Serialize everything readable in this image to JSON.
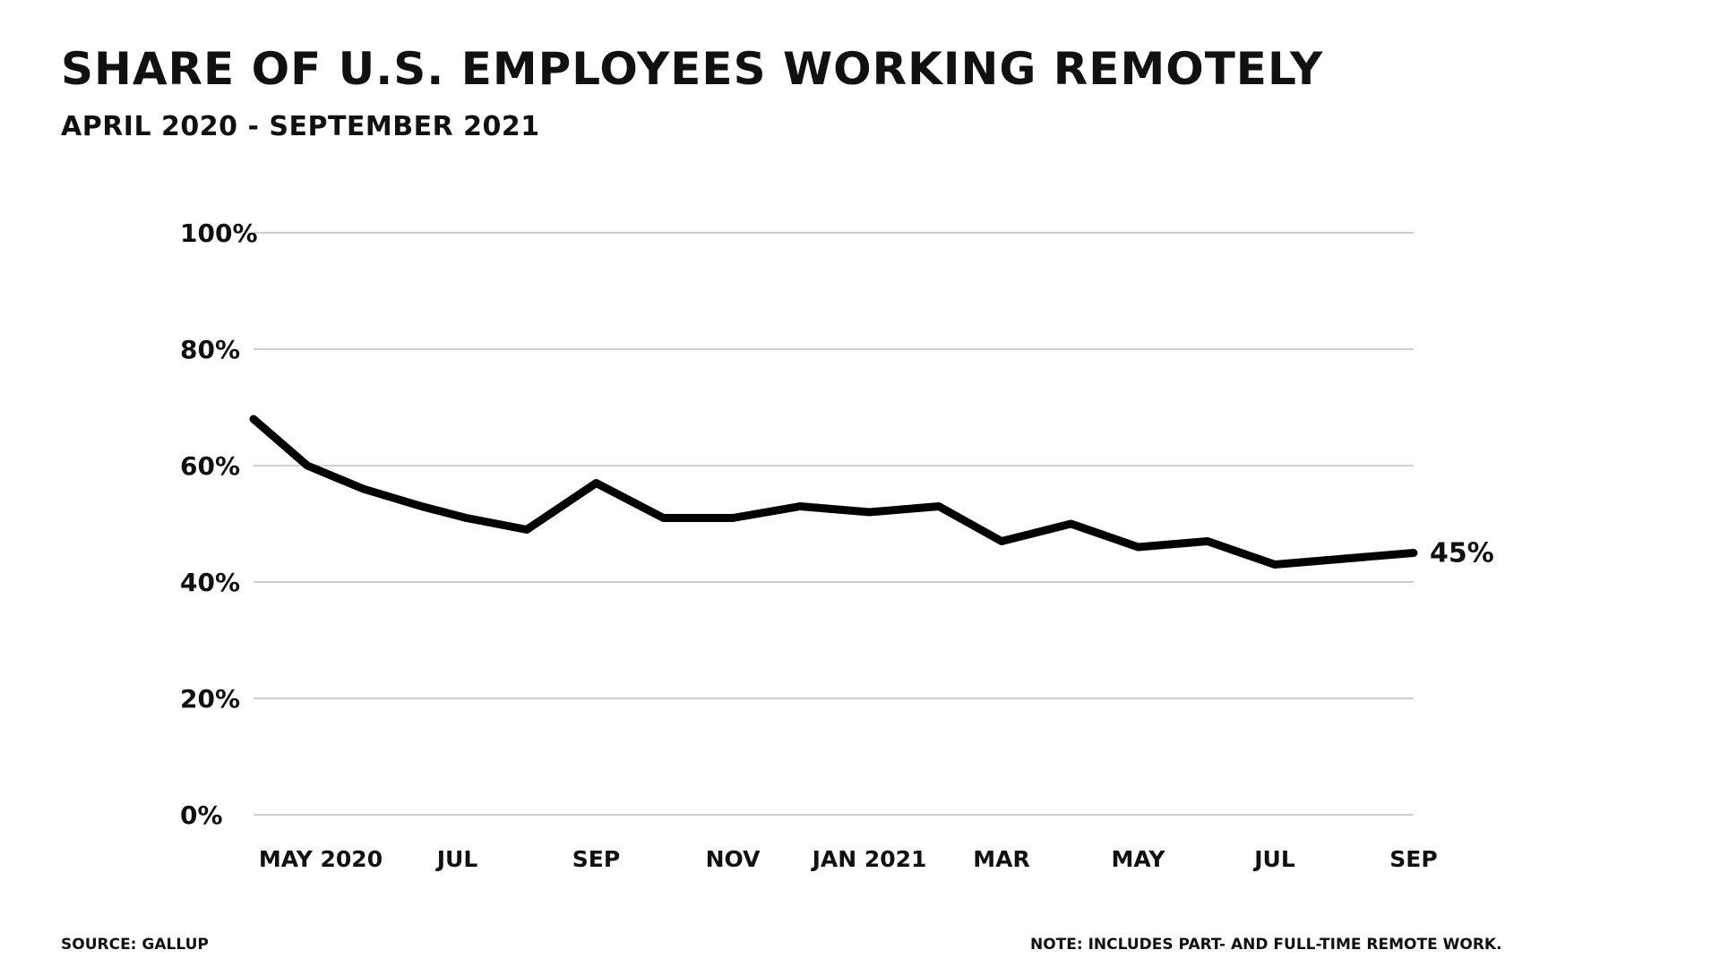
{
  "header": {
    "title": "SHARE OF U.S. EMPLOYEES WORKING REMOTELY",
    "subtitle": "APRIL 2020 - SEPTEMBER 2021"
  },
  "footer": {
    "source": "SOURCE: GALLUP",
    "note": "NOTE: INCLUDES PART- AND FULL-TIME REMOTE WORK."
  },
  "colors": {
    "line": "#000000",
    "grid": "#d0d0d0",
    "text": "#111111"
  },
  "chart_data": {
    "type": "line",
    "grid": true,
    "legend": "none",
    "ylim": [
      0,
      100
    ],
    "yticks": [
      0,
      20,
      40,
      60,
      80,
      100
    ],
    "ytick_labels": [
      "0%",
      "20%",
      "40%",
      "60%",
      "80%",
      "100%"
    ],
    "xlim": [
      "2020-04",
      "2021-09"
    ],
    "xticks": [
      "2020-05",
      "2020-07",
      "2020-09",
      "2020-11",
      "2021-01",
      "2021-03",
      "2021-05",
      "2021-07",
      "2021-09"
    ],
    "xtick_labels": [
      "MAY 2020",
      "JUL",
      "SEP",
      "NOV",
      "JAN 2021",
      "MAR",
      "MAY",
      "JUL",
      "SEP"
    ],
    "series": [
      {
        "x": [
          "2020-04-01",
          "2020-04-25",
          "2020-05-20",
          "2020-06-15",
          "2020-07-05",
          "2020-08-01",
          "2020-09-01",
          "2020-10-01",
          "2020-11-01",
          "2020-12-01",
          "2021-01-01",
          "2021-02-01",
          "2021-03-01",
          "2021-04-01",
          "2021-05-01",
          "2021-06-01",
          "2021-07-01",
          "2021-08-01",
          "2021-09-01"
        ],
        "values": [
          68,
          60,
          56,
          53,
          51,
          49,
          57,
          51,
          51,
          53,
          52,
          53,
          47,
          50,
          46,
          47,
          43,
          44,
          45
        ]
      }
    ],
    "annotations": [
      {
        "text": "45%",
        "x": "2021-09-01",
        "y": 45
      }
    ]
  }
}
